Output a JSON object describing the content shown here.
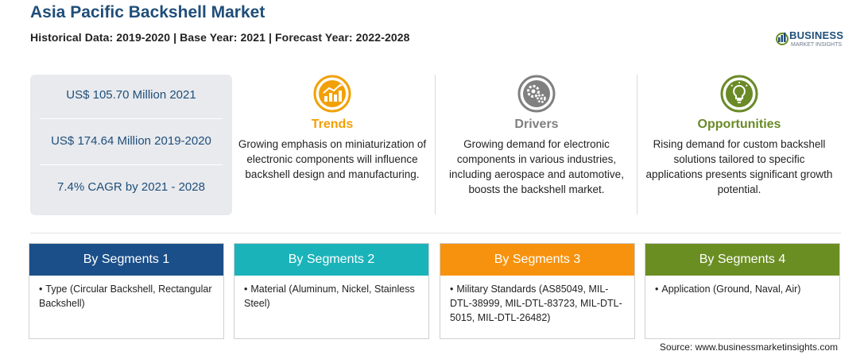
{
  "header": {
    "title": "Asia Pacific Backshell Market",
    "subtitle": "Historical Data: 2019-2020 | Base Year: 2021 | Forecast Year: 2022-2028"
  },
  "logo": {
    "name": "BUSINESS",
    "tagline": "MARKET INSIGHTS"
  },
  "stats": [
    {
      "text": "US$ 105.70 Million 2021"
    },
    {
      "text": "US$ 174.64 Million 2019-2020"
    },
    {
      "text": "7.4% CAGR by 2021 - 2028"
    }
  ],
  "columns": [
    {
      "title": "Trends",
      "color": "#f2a007",
      "icon": "trend-chart-icon",
      "text": "Growing emphasis on miniaturization of electronic components will influence backshell design and manufacturing."
    },
    {
      "title": "Drivers",
      "color": "#808080",
      "icon": "gears-icon",
      "text": "Growing demand for electronic components in various industries, including aerospace and automotive, boosts the backshell market."
    },
    {
      "title": "Opportunities",
      "color": "#6a8a27",
      "icon": "lightbulb-icon",
      "text": "Rising demand for custom backshell solutions tailored to specific applications presents significant growth potential."
    }
  ],
  "segments": [
    {
      "label": "By Segments 1",
      "color": "#1b4f8a",
      "bullet": "•",
      "text": "Type (Circular Backshell, Rectangular Backshell)"
    },
    {
      "label": "By Segments 2",
      "color": "#1bb3ba",
      "bullet": "•",
      "text": "Material (Aluminum, Nickel, Stainless Steel)"
    },
    {
      "label": "By Segments 3",
      "color": "#f7920e",
      "bullet": "•",
      "text": "Military Standards (AS85049, MIL-DTL-38999, MIL-DTL-83723, MIL-DTL-5015, MIL-DTL-26482)"
    },
    {
      "label": "By Segments 4",
      "color": "#6b8e23",
      "bullet": "•",
      "text": "Application (Ground, Naval, Air)"
    }
  ],
  "footer": {
    "source": "Source: www.businessmarketinsights.com"
  }
}
